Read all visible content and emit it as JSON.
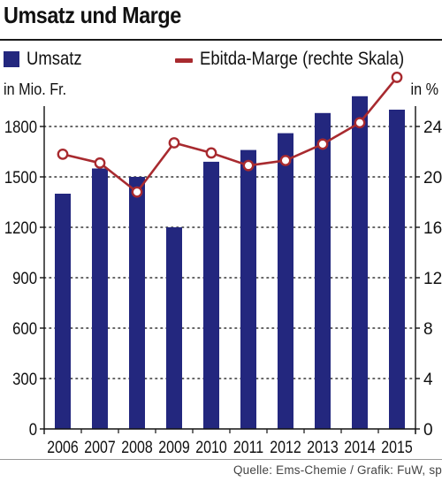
{
  "title": "Umsatz und Marge",
  "legend": {
    "bars_label": "Umsatz",
    "line_label": "Ebitda-Marge (rechte Skala)"
  },
  "units": {
    "left": "in Mio. Fr.",
    "right": "in %"
  },
  "source": "Quelle: Ems-Chemie / Grafik: FuW, sp",
  "colors": {
    "bars": "#23277e",
    "line": "#a82a2f"
  },
  "chart_data": {
    "type": "bar",
    "title": "Umsatz und Marge",
    "categories": [
      "2006",
      "2007",
      "2008",
      "2009",
      "2010",
      "2011",
      "2012",
      "2013",
      "2014",
      "2015"
    ],
    "series": [
      {
        "name": "Umsatz",
        "type": "bar",
        "axis": "left",
        "values": [
          1400,
          1550,
          1500,
          1200,
          1590,
          1660,
          1760,
          1880,
          1980,
          1900
        ]
      },
      {
        "name": "Ebitda-Marge (rechte Skala)",
        "type": "line",
        "axis": "right",
        "values": [
          21.8,
          21.1,
          18.8,
          22.7,
          21.9,
          20.9,
          21.3,
          22.6,
          24.3,
          27.9
        ]
      }
    ],
    "y_left": {
      "label": "in Mio. Fr.",
      "ylim": [
        0,
        1950
      ],
      "ticks": [
        0,
        300,
        600,
        900,
        1200,
        1500,
        1800
      ]
    },
    "y_right": {
      "label": "in %",
      "ylim": [
        0,
        26
      ],
      "ticks": [
        0,
        4,
        8,
        12,
        16,
        20,
        24
      ]
    },
    "grid": true,
    "legend_position": "top"
  }
}
